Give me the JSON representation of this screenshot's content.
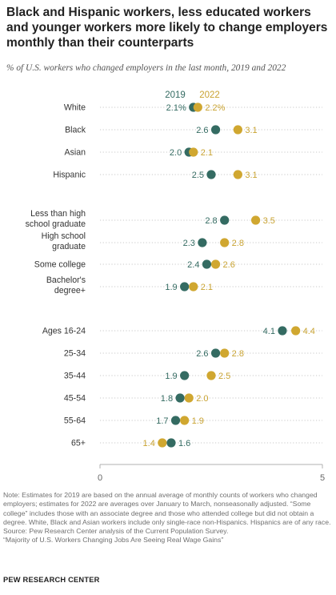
{
  "title": "Black and Hispanic workers, less educated workers and younger workers more likely to change employers monthly than their counterparts",
  "subtitle": "% of U.S. workers who changed employers in the last month, 2019 and 2022",
  "colors": {
    "s2019": "#346b62",
    "s2022": "#d0a730",
    "label2019": "#346b62",
    "label2022": "#c9a332",
    "dots": "#c8c8c8",
    "axis": "#b0b0b0",
    "text": "#333333"
  },
  "chart_data": {
    "type": "dot",
    "xlim": [
      0,
      5
    ],
    "x_ticks": [
      "0",
      "5"
    ],
    "series": [
      {
        "name": "2019",
        "color": "#346b62"
      },
      {
        "name": "2022",
        "color": "#d0a730"
      }
    ],
    "rows": [
      {
        "label": [
          "White"
        ],
        "v2019": 2.1,
        "v2022": 2.2,
        "t2019": "2.1%",
        "t2022": "2.2%"
      },
      {
        "label": [
          "Black"
        ],
        "v2019": 2.6,
        "v2022": 3.1,
        "t2019": "2.6",
        "t2022": "3.1"
      },
      {
        "label": [
          "Asian"
        ],
        "v2019": 2.0,
        "v2022": 2.1,
        "t2019": "2.0",
        "t2022": "2.1"
      },
      {
        "label": [
          "Hispanic"
        ],
        "v2019": 2.5,
        "v2022": 3.1,
        "t2019": "2.5",
        "t2022": "3.1"
      },
      {
        "label": [
          "Less than high",
          "school graduate"
        ],
        "v2019": 2.8,
        "v2022": 3.5,
        "t2019": "2.8",
        "t2022": "3.5"
      },
      {
        "label": [
          "High school",
          "graduate"
        ],
        "v2019": 2.3,
        "v2022": 2.8,
        "t2019": "2.3",
        "t2022": "2.8"
      },
      {
        "label": [
          "Some college"
        ],
        "v2019": 2.4,
        "v2022": 2.6,
        "t2019": "2.4",
        "t2022": "2.6"
      },
      {
        "label": [
          "Bachelor's",
          "degree+"
        ],
        "v2019": 1.9,
        "v2022": 2.1,
        "t2019": "1.9",
        "t2022": "2.1"
      },
      {
        "label": [
          "Ages 16-24"
        ],
        "v2019": 4.1,
        "v2022": 4.4,
        "t2019": "4.1",
        "t2022": "4.4"
      },
      {
        "label": [
          "25-34"
        ],
        "v2019": 2.6,
        "v2022": 2.8,
        "t2019": "2.6",
        "t2022": "2.8"
      },
      {
        "label": [
          "35-44"
        ],
        "v2019": 1.9,
        "v2022": 2.5,
        "t2019": "1.9",
        "t2022": "2.5"
      },
      {
        "label": [
          "45-54"
        ],
        "v2019": 1.8,
        "v2022": 2.0,
        "t2019": "1.8",
        "t2022": "2.0"
      },
      {
        "label": [
          "55-64"
        ],
        "v2019": 1.7,
        "v2022": 1.9,
        "t2019": "1.7",
        "t2022": "1.9"
      },
      {
        "label": [
          "65+"
        ],
        "v2019": 1.6,
        "v2022": 1.4,
        "t2019": "1.6",
        "t2022": "1.4"
      }
    ]
  },
  "notes": [
    "Note: Estimates for 2019 are based on the annual average of monthly counts of workers who changed employers; estimates for 2022 are averages over January to March, nonseasonally adjusted. “Some college” includes those with an associate degree and those who attended college but did not obtain a degree. White, Black and Asian workers include only single-race non-Hispanics. Hispanics are of any race.",
    "Source: Pew Research Center analysis of the Current Population Survey.",
    "“Majority of U.S. Workers Changing Jobs Are Seeing Real Wage Gains”"
  ],
  "brand": "PEW RESEARCH CENTER"
}
